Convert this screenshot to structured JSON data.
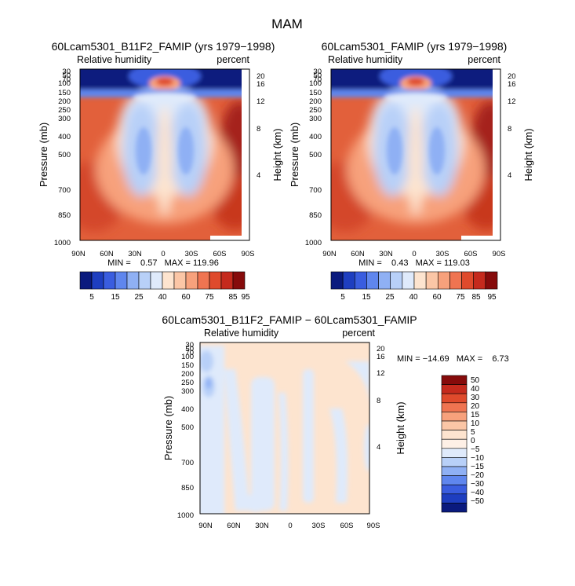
{
  "figure_title": "MAM",
  "chart_data": [
    {
      "type": "heatmap",
      "id": "p1",
      "title": "60Lcam5301_B11F2_FAMIP (yrs 1979−1998)",
      "variable": "Relative humidity",
      "units": "percent",
      "ylabel": "Pressure (mb)",
      "y2label": "Height (km)",
      "x_ticks": [
        "90N",
        "60N",
        "30N",
        "0",
        "30S",
        "60S",
        "90S"
      ],
      "y_ticks": [
        "30",
        "50",
        "70",
        "100",
        "150",
        "200",
        "250",
        "300",
        "400",
        "500",
        "700",
        "850",
        "1000"
      ],
      "y2_ticks": [
        "20",
        "16",
        "12",
        "8",
        "4"
      ],
      "stats": "MIN =    0.57   MAX = 119.96",
      "colorbar_labels": [
        "5",
        "15",
        "25",
        "40",
        "60",
        "75",
        "85",
        "95"
      ],
      "colorbar_colors": [
        "#0a1a7e",
        "#1e3ec0",
        "#3a5ddf",
        "#5f86ee",
        "#8fb0f4",
        "#b8d0f8",
        "#dfeafb",
        "#fde4cf",
        "#fbc6a6",
        "#f7a17c",
        "#ef7451",
        "#df4a2c",
        "#c52a1d",
        "#860b0b"
      ]
    },
    {
      "type": "heatmap",
      "id": "p2",
      "title": "60Lcam5301_FAMIP (yrs 1979−1998)",
      "variable": "Relative humidity",
      "units": "percent",
      "ylabel": "Pressure (mb)",
      "y2label": "Height (km)",
      "x_ticks": [
        "90N",
        "60N",
        "30N",
        "0",
        "30S",
        "60S",
        "90S"
      ],
      "y_ticks": [
        "30",
        "50",
        "70",
        "100",
        "150",
        "200",
        "250",
        "300",
        "400",
        "500",
        "700",
        "850",
        "1000"
      ],
      "y2_ticks": [
        "20",
        "16",
        "12",
        "8",
        "4"
      ],
      "stats": "MIN =    0.43   MAX = 119.03",
      "colorbar_labels": [
        "5",
        "15",
        "25",
        "40",
        "60",
        "75",
        "85",
        "95"
      ],
      "colorbar_colors": [
        "#0a1a7e",
        "#1e3ec0",
        "#3a5ddf",
        "#5f86ee",
        "#8fb0f4",
        "#b8d0f8",
        "#dfeafb",
        "#fde4cf",
        "#fbc6a6",
        "#f7a17c",
        "#ef7451",
        "#df4a2c",
        "#c52a1d",
        "#860b0b"
      ]
    },
    {
      "type": "heatmap",
      "id": "p3",
      "title": "60Lcam5301_B11F2_FAMIP − 60Lcam5301_FAMIP",
      "variable": "Relative humidity",
      "units": "percent",
      "ylabel": "Pressure (mb)",
      "y2label": "Height (km)",
      "x_ticks": [
        "90N",
        "60N",
        "30N",
        "0",
        "30S",
        "60S",
        "90S"
      ],
      "y_ticks": [
        "30",
        "50",
        "70",
        "100",
        "150",
        "200",
        "250",
        "300",
        "400",
        "500",
        "700",
        "850",
        "1000"
      ],
      "y2_ticks": [
        "20",
        "16",
        "12",
        "8",
        "4"
      ],
      "stats": "MIN = −14.69   MAX =    6.73",
      "colorbar_labels": [
        "50",
        "40",
        "30",
        "20",
        "15",
        "10",
        "5",
        "0",
        "−5",
        "−10",
        "−15",
        "−20",
        "−30",
        "−40",
        "−50"
      ],
      "colorbar_colors": [
        "#860b0b",
        "#c52a1d",
        "#df4a2c",
        "#ef7451",
        "#f7a17c",
        "#fbc6a6",
        "#fde4cf",
        "#fef0e6",
        "#dfeafb",
        "#b8d0f8",
        "#8fb0f4",
        "#5f86ee",
        "#3a5ddf",
        "#1e3ec0",
        "#0a1a7e"
      ]
    }
  ]
}
